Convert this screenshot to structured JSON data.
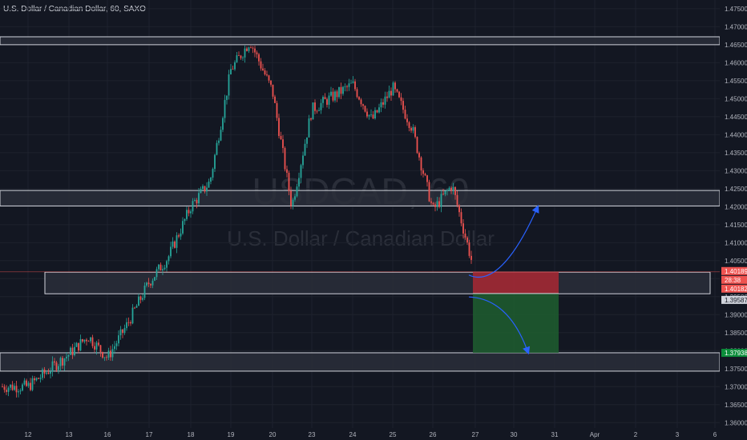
{
  "header": {
    "title": "U.S. Dollar / Canadian Dollar, 60, SAXO"
  },
  "watermark": {
    "symbol": "USDCAD, 60",
    "name": "U.S. Dollar / Canadian Dollar"
  },
  "colors": {
    "up": "#26a69a",
    "down": "#ef5350",
    "zone": "#2a2e39",
    "zone_border": "#d1d4dc",
    "arrow": "#2962ff",
    "stop": "#b22833",
    "target": "#1e5e2f",
    "bg": "#131722"
  },
  "chart_data": {
    "type": "line",
    "title": "U.S. Dollar / Canadian Dollar, 60, SAXO",
    "ylim": [
      1.3585,
      1.4752
    ],
    "y_ticks": [
      "1.47500",
      "1.47000",
      "1.46500",
      "1.46000",
      "1.45500",
      "1.45000",
      "1.44500",
      "1.44000",
      "1.43500",
      "1.43000",
      "1.42500",
      "1.42000",
      "1.41500",
      "1.41000",
      "1.40500",
      "1.40000",
      "1.39500",
      "1.39000",
      "1.38500",
      "1.38000",
      "1.37500",
      "1.37000",
      "1.36500",
      "1.36000"
    ],
    "x_ticks": [
      "12",
      "13",
      "16",
      "17",
      "18",
      "19",
      "20",
      "23",
      "24",
      "25",
      "26",
      "27",
      "30",
      "31",
      "Apr",
      "2",
      "3",
      "6"
    ],
    "price_labels": [
      "1.40189",
      "28:38",
      "1.40182",
      "1.39587",
      "1.37938"
    ],
    "path": [
      [
        "12",
        1.37
      ],
      [
        "13",
        1.379
      ],
      [
        "13",
        1.384
      ],
      [
        "16",
        1.378
      ],
      [
        "16",
        1.387
      ],
      [
        "17",
        1.399
      ],
      [
        "17",
        1.406
      ],
      [
        "18",
        1.42
      ],
      [
        "18",
        1.427
      ],
      [
        "19",
        1.458
      ],
      [
        "19",
        1.466
      ],
      [
        "20",
        1.452
      ],
      [
        "20",
        1.42
      ],
      [
        "23",
        1.447
      ],
      [
        "24",
        1.454
      ],
      [
        "24",
        1.444
      ],
      [
        "25",
        1.453
      ],
      [
        "25",
        1.442
      ],
      [
        "26",
        1.419
      ],
      [
        "26",
        1.426
      ],
      [
        "27",
        1.401
      ]
    ],
    "zones": [
      {
        "from": 1.465,
        "to": 1.4672
      },
      {
        "from": 1.4202,
        "to": 1.4245
      },
      {
        "from": 1.3958,
        "to": 1.4018
      },
      {
        "from": 1.3743,
        "to": 1.3794
      }
    ],
    "trade": {
      "entry": 1.39587,
      "stop": 1.40189,
      "target": 1.37938,
      "from_x": "27",
      "to_x": "30"
    },
    "scenarios": [
      {
        "from_price": 1.401,
        "to_price": 1.42
      },
      {
        "from_price": 1.3958,
        "to_price": 1.3794
      }
    ]
  }
}
